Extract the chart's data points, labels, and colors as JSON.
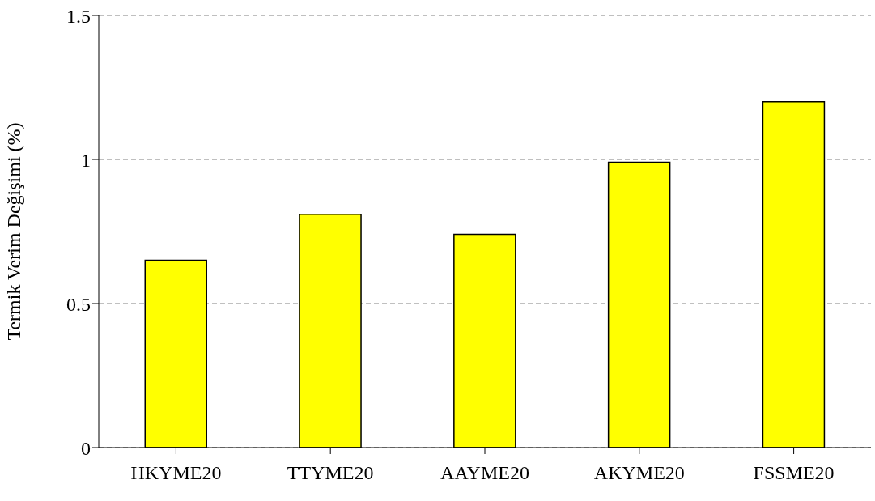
{
  "chart_data": {
    "type": "bar",
    "ylabel": "Termik Verim Değişimi (%)",
    "categories": [
      "HKYME20",
      "TTYME20",
      "AAYME20",
      "AKYME20",
      "FSSME20"
    ],
    "values": [
      0.65,
      0.81,
      0.74,
      0.99,
      1.2
    ],
    "color": "#ffff00",
    "ylim": [
      0,
      1.5
    ],
    "yticks": [
      0,
      0.5,
      1,
      1.5
    ],
    "grid": "y"
  }
}
